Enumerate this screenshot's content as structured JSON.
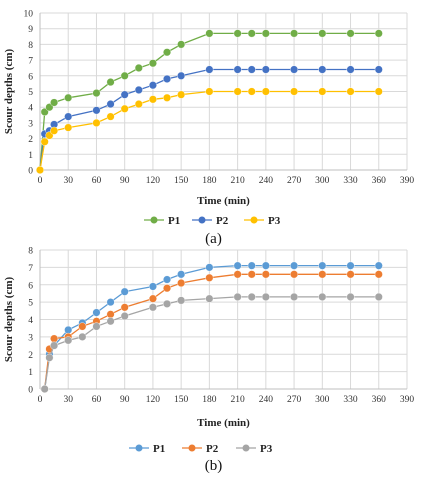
{
  "chart_data": [
    {
      "panel": "a",
      "caption": "(a)",
      "type": "line",
      "xlabel": "Time (min)",
      "ylabel": "Scour depths (cm)",
      "xlim": [
        0,
        390
      ],
      "ylim": [
        0,
        10
      ],
      "xticks": [
        0,
        30,
        60,
        90,
        120,
        150,
        180,
        210,
        240,
        270,
        300,
        330,
        360,
        390
      ],
      "yticks": [
        0,
        1,
        2,
        3,
        4,
        5,
        6,
        7,
        8,
        9,
        10
      ],
      "grid": true,
      "legend_position": "bottom",
      "series": [
        {
          "name": "P1",
          "color": "#70ad47",
          "x": [
            0,
            5,
            10,
            15,
            30,
            60,
            75,
            90,
            105,
            120,
            135,
            150,
            180,
            210,
            225,
            240,
            270,
            300,
            330,
            360
          ],
          "y": [
            0,
            3.7,
            4.0,
            4.3,
            4.6,
            4.9,
            5.6,
            6.0,
            6.5,
            6.8,
            7.5,
            8.0,
            8.7,
            8.7,
            8.7,
            8.7,
            8.7,
            8.7,
            8.7,
            8.7
          ]
        },
        {
          "name": "P2",
          "color": "#4472c4",
          "x": [
            0,
            5,
            10,
            15,
            30,
            60,
            75,
            90,
            105,
            120,
            135,
            150,
            180,
            210,
            225,
            240,
            270,
            300,
            330,
            360
          ],
          "y": [
            0,
            2.3,
            2.5,
            2.9,
            3.4,
            3.8,
            4.2,
            4.8,
            5.1,
            5.4,
            5.8,
            6.0,
            6.4,
            6.4,
            6.4,
            6.4,
            6.4,
            6.4,
            6.4,
            6.4
          ]
        },
        {
          "name": "P3",
          "color": "#ffc000",
          "x": [
            0,
            5,
            10,
            15,
            30,
            60,
            75,
            90,
            105,
            120,
            135,
            150,
            180,
            210,
            225,
            240,
            270,
            300,
            330,
            360
          ],
          "y": [
            0,
            1.8,
            2.2,
            2.5,
            2.7,
            3.0,
            3.4,
            3.9,
            4.2,
            4.5,
            4.6,
            4.8,
            5.0,
            5.0,
            5.0,
            5.0,
            5.0,
            5.0,
            5.0,
            5.0
          ]
        }
      ]
    },
    {
      "panel": "b",
      "caption": "(b)",
      "type": "line",
      "xlabel": "Time (min)",
      "ylabel": "Scour depths (cm)",
      "xlim": [
        0,
        390
      ],
      "ylim": [
        0,
        8
      ],
      "xticks": [
        0,
        30,
        60,
        90,
        120,
        150,
        180,
        210,
        240,
        270,
        300,
        330,
        360,
        390
      ],
      "yticks": [
        0,
        1,
        2,
        3,
        4,
        5,
        6,
        7,
        8
      ],
      "grid": true,
      "legend_position": "bottom",
      "series": [
        {
          "name": "P1",
          "color": "#5b9bd5",
          "x": [
            5,
            10,
            15,
            30,
            45,
            60,
            75,
            90,
            120,
            135,
            150,
            180,
            210,
            225,
            240,
            270,
            300,
            330,
            360
          ],
          "y": [
            0,
            2.0,
            2.5,
            3.4,
            3.8,
            4.4,
            5.0,
            5.6,
            5.9,
            6.3,
            6.6,
            7.0,
            7.1,
            7.1,
            7.1,
            7.1,
            7.1,
            7.1,
            7.1
          ]
        },
        {
          "name": "P2",
          "color": "#ed7d31",
          "x": [
            5,
            10,
            15,
            30,
            45,
            60,
            75,
            90,
            120,
            135,
            150,
            180,
            210,
            225,
            240,
            270,
            300,
            330,
            360
          ],
          "y": [
            0,
            2.3,
            2.9,
            3.0,
            3.6,
            3.9,
            4.3,
            4.7,
            5.2,
            5.8,
            6.1,
            6.4,
            6.6,
            6.6,
            6.6,
            6.6,
            6.6,
            6.6,
            6.6
          ]
        },
        {
          "name": "P3",
          "color": "#a5a5a5",
          "x": [
            5,
            10,
            15,
            30,
            45,
            60,
            75,
            90,
            120,
            135,
            150,
            180,
            210,
            225,
            240,
            270,
            300,
            330,
            360
          ],
          "y": [
            0,
            1.8,
            2.5,
            2.8,
            3.0,
            3.6,
            3.9,
            4.2,
            4.7,
            4.9,
            5.1,
            5.2,
            5.3,
            5.3,
            5.3,
            5.3,
            5.3,
            5.3,
            5.3
          ]
        }
      ]
    }
  ]
}
